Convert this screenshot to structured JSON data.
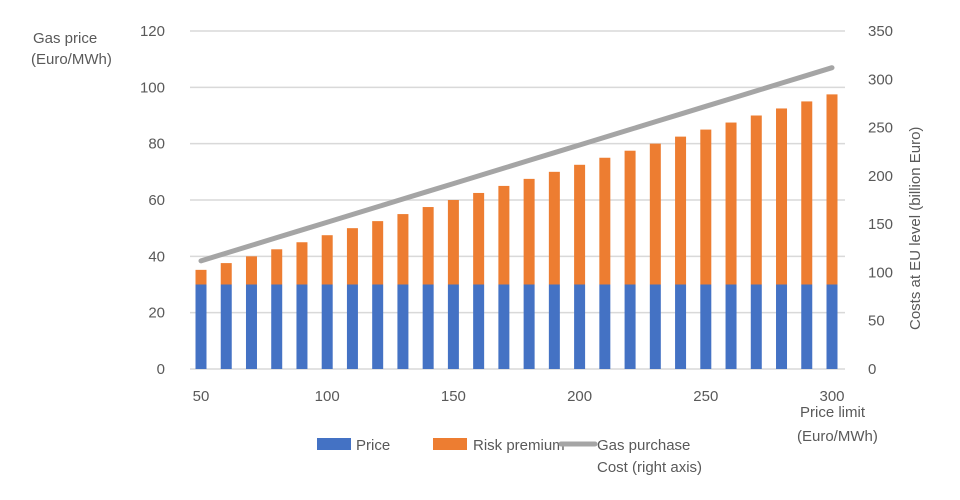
{
  "chart_data": {
    "type": "bar",
    "stacked": true,
    "title": "",
    "xlabel": [
      "Price limit",
      "(Euro/MWh)"
    ],
    "ylabel": [
      "Gas price",
      "(Euro/MWh)"
    ],
    "y2label": "Costs at EU level (billion Euro)",
    "ylim": [
      0,
      120
    ],
    "y2lim": [
      0,
      350
    ],
    "yticks": [
      "0",
      "20",
      "40",
      "60",
      "80",
      "100",
      "120"
    ],
    "y2ticks": [
      "0",
      "50",
      "100",
      "150",
      "200",
      "250",
      "300",
      "350"
    ],
    "xticks": [
      "50",
      "100",
      "150",
      "200",
      "250",
      "300"
    ],
    "grid": true,
    "legend_position": "bottom",
    "categories": [
      50,
      60,
      70,
      80,
      90,
      100,
      110,
      120,
      130,
      140,
      150,
      160,
      170,
      180,
      190,
      200,
      210,
      220,
      230,
      240,
      250,
      260,
      270,
      280,
      290,
      300
    ],
    "series": [
      {
        "name": "Price",
        "type": "bar",
        "axis": "left",
        "color": "#4472C4",
        "values": [
          30,
          30,
          30,
          30,
          30,
          30,
          30,
          30,
          30,
          30,
          30,
          30,
          30,
          30,
          30,
          30,
          30,
          30,
          30,
          30,
          30,
          30,
          30,
          30,
          30,
          30
        ]
      },
      {
        "name": "Risk premium",
        "type": "bar",
        "axis": "left",
        "color": "#ED7D31",
        "values": [
          5.2,
          7.6,
          10,
          12.5,
          15,
          17.5,
          20,
          22.5,
          25,
          27.5,
          30,
          32.5,
          35,
          37.5,
          40,
          42.5,
          45,
          47.5,
          50,
          52.5,
          55,
          57.5,
          60,
          62.5,
          65,
          67.5
        ]
      },
      {
        "name": [
          "Gas purchase",
          "Cost (right axis)"
        ],
        "type": "line",
        "axis": "right",
        "color": "#A5A5A5",
        "values": [
          112,
          120,
          128,
          136,
          144,
          152,
          160,
          168,
          176,
          184,
          192,
          200,
          208,
          216,
          224,
          232,
          240,
          248,
          256,
          264,
          272,
          280,
          288,
          296,
          304,
          312
        ]
      }
    ]
  }
}
